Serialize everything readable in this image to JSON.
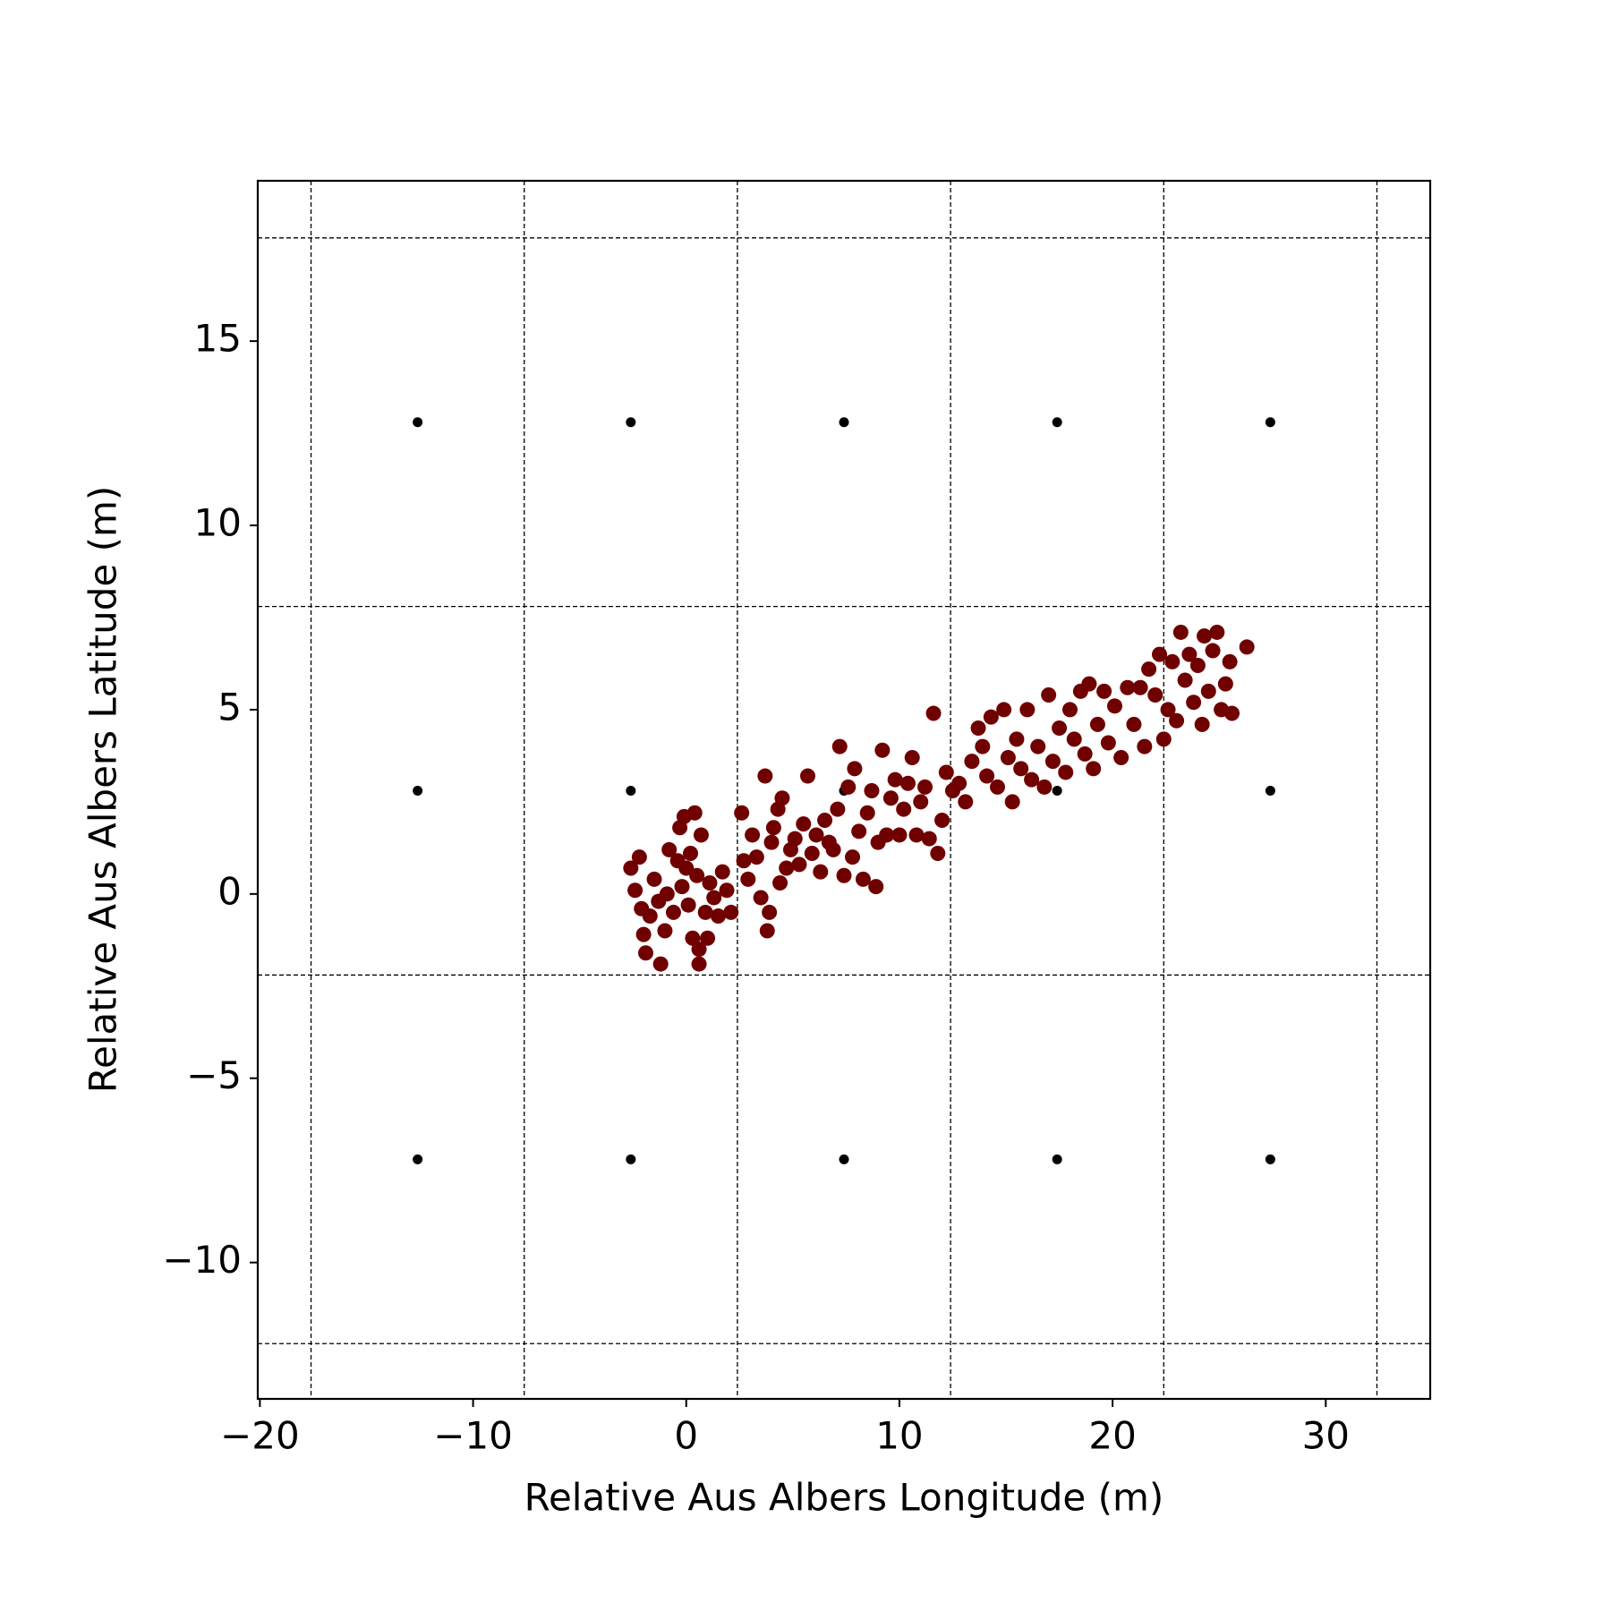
{
  "chart_data": {
    "type": "scatter",
    "xlabel": "Relative Aus Albers Longitude (m)",
    "ylabel": "Relative Aus Albers Latitude (m)",
    "xlim": [
      -20.1,
      34.9
    ],
    "ylim": [
      -13.7,
      19.35
    ],
    "xticks": [
      {
        "value": -20,
        "label": "−20"
      },
      {
        "value": -10,
        "label": "−10"
      },
      0,
      10,
      20,
      30
    ],
    "yticks": [
      {
        "value": -10,
        "label": "−10"
      },
      {
        "value": -5,
        "label": "−5"
      },
      0,
      5,
      10,
      15
    ],
    "vlines": [
      -17.6,
      -7.6,
      2.4,
      12.4,
      22.4,
      32.4
    ],
    "hlines": [
      17.8,
      7.8,
      -2.2,
      -12.2
    ],
    "series": [
      {
        "color": "#000000",
        "x": [
          -12.6,
          -2.6,
          7.4,
          17.4,
          27.4,
          -12.6,
          -2.6,
          7.4,
          17.4,
          27.4,
          -12.6,
          -2.6,
          7.4,
          17.4,
          27.4
        ],
        "y": [
          12.8,
          12.8,
          12.8,
          12.8,
          12.8,
          2.8,
          2.8,
          2.8,
          2.8,
          2.8,
          -7.2,
          -7.2,
          -7.2,
          -7.2,
          -7.2
        ]
      },
      {
        "color": "#700000",
        "x": [
          -2.6,
          -2.4,
          -2.2,
          -2.1,
          -2.0,
          -1.9,
          -1.7,
          -1.5,
          -1.3,
          -1.2,
          -1.0,
          -0.9,
          -0.8,
          -0.6,
          -0.4,
          -0.3,
          -0.2,
          -0.1,
          0.0,
          0.1,
          0.2,
          0.3,
          0.4,
          0.5,
          0.6,
          0.6,
          0.7,
          0.9,
          1.0,
          1.1,
          1.3,
          1.5,
          1.7,
          1.9,
          2.1,
          2.6,
          2.7,
          2.9,
          3.1,
          3.3,
          3.5,
          3.7,
          3.8,
          3.9,
          4.0,
          4.1,
          4.3,
          4.4,
          4.5,
          4.7,
          4.9,
          5.1,
          5.3,
          5.5,
          5.7,
          5.9,
          6.1,
          6.3,
          6.5,
          6.7,
          6.9,
          7.1,
          7.2,
          7.4,
          7.6,
          7.8,
          7.9,
          8.1,
          8.3,
          8.5,
          8.7,
          8.9,
          9.0,
          9.2,
          9.4,
          9.6,
          9.8,
          10.0,
          10.2,
          10.4,
          10.6,
          10.8,
          11.0,
          11.2,
          11.4,
          11.6,
          11.8,
          12.0,
          12.2,
          12.5,
          12.8,
          13.1,
          13.4,
          13.7,
          13.9,
          14.1,
          14.3,
          14.6,
          14.9,
          15.1,
          15.3,
          15.5,
          15.7,
          16.0,
          16.2,
          16.5,
          16.8,
          17.0,
          17.2,
          17.5,
          17.8,
          18.0,
          18.2,
          18.5,
          18.7,
          18.9,
          19.1,
          19.3,
          19.6,
          19.8,
          20.1,
          20.4,
          20.7,
          21.0,
          21.3,
          21.5,
          21.7,
          22.0,
          22.2,
          22.4,
          22.6,
          22.8,
          23.0,
          23.2,
          23.4,
          23.6,
          23.8,
          24.0,
          24.2,
          24.3,
          24.5,
          24.7,
          24.9,
          25.1,
          25.3,
          25.5,
          25.6,
          26.3
        ],
        "y": [
          0.7,
          0.1,
          1.0,
          -0.4,
          -1.1,
          -1.6,
          -0.6,
          0.4,
          -0.2,
          -1.9,
          -1.0,
          0.0,
          1.2,
          -0.5,
          0.9,
          1.8,
          0.2,
          2.1,
          0.7,
          -0.3,
          1.1,
          -1.2,
          2.2,
          0.5,
          -1.9,
          -1.5,
          1.6,
          -0.5,
          -1.2,
          0.3,
          -0.1,
          -0.6,
          0.6,
          0.1,
          -0.5,
          2.2,
          0.9,
          0.4,
          1.6,
          1.0,
          -0.1,
          3.2,
          -1.0,
          -0.5,
          1.4,
          1.8,
          2.3,
          0.3,
          2.6,
          0.7,
          1.2,
          1.5,
          0.8,
          1.9,
          3.2,
          1.1,
          1.6,
          0.6,
          2.0,
          1.4,
          1.2,
          2.3,
          4.0,
          0.5,
          2.9,
          1.0,
          3.4,
          1.7,
          0.4,
          2.2,
          2.8,
          0.2,
          1.4,
          3.9,
          1.6,
          2.6,
          3.1,
          1.6,
          2.3,
          3.0,
          3.7,
          1.6,
          2.5,
          2.9,
          1.5,
          4.9,
          1.1,
          2.0,
          3.3,
          2.8,
          3.0,
          2.5,
          3.6,
          4.5,
          4.0,
          3.2,
          4.8,
          2.9,
          5.0,
          3.7,
          2.5,
          4.2,
          3.4,
          5.0,
          3.1,
          4.0,
          2.9,
          5.4,
          3.6,
          4.5,
          3.3,
          5.0,
          4.2,
          5.5,
          3.8,
          5.7,
          3.4,
          4.6,
          5.5,
          4.1,
          5.1,
          3.7,
          5.6,
          4.6,
          5.6,
          4.0,
          6.1,
          5.4,
          6.5,
          4.2,
          5.0,
          6.3,
          4.7,
          7.1,
          5.8,
          6.5,
          5.2,
          6.2,
          4.6,
          7.0,
          5.5,
          6.6,
          7.1,
          5.0,
          5.7,
          6.3,
          4.9,
          6.7
        ]
      }
    ]
  }
}
